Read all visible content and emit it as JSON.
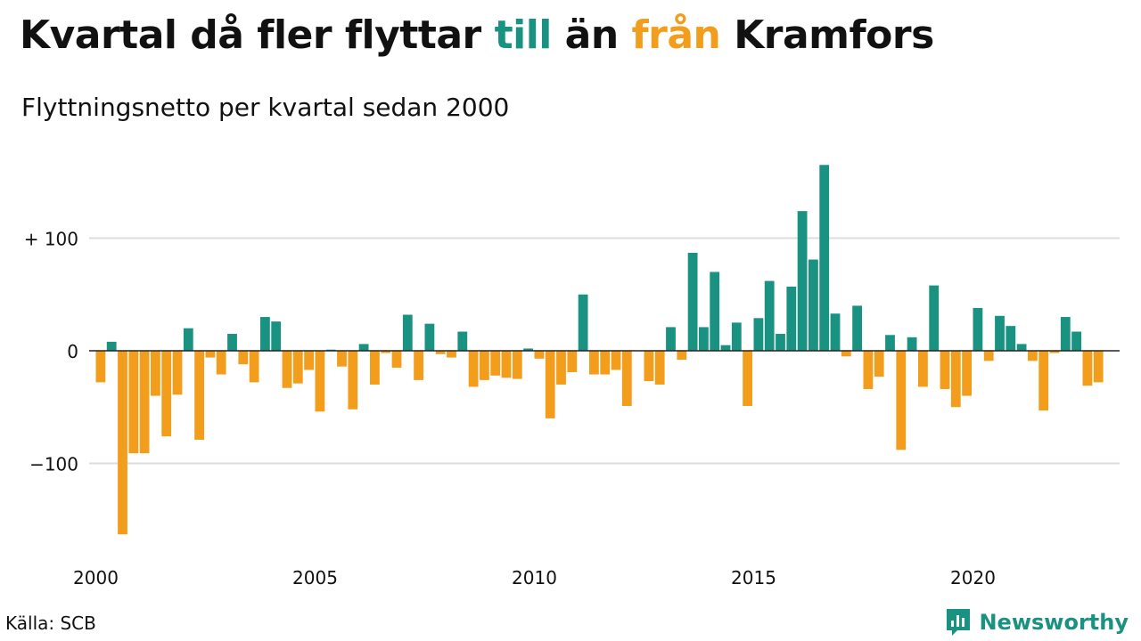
{
  "header": {
    "title_parts": [
      "Kvartal då fler flyttar ",
      "till",
      " än ",
      "från",
      " Kramfors"
    ],
    "subtitle": "Flyttningsnetto per kvartal sedan 2000"
  },
  "footer": {
    "source": "Källa: SCB",
    "brand": "Newsworthy"
  },
  "colors": {
    "positive": "#1a9281",
    "negative": "#f29d1b",
    "grid": "#dddddd",
    "zero": "#222222"
  },
  "chart_data": {
    "type": "bar",
    "title": "Kvartal då fler flyttar till än från Kramfors",
    "subtitle": "Flyttningsnetto per kvartal sedan 2000",
    "x_tick_labels": [
      "2000",
      "2005",
      "2010",
      "2015",
      "2020"
    ],
    "y_ticks": [
      {
        "value": 100,
        "label": "+ 100"
      },
      {
        "value": 0,
        "label": "0"
      },
      {
        "value": -100,
        "label": "−100"
      }
    ],
    "ylim": [
      -175,
      175
    ],
    "grid": true,
    "start": "2000 Q1",
    "values": [
      -28,
      8,
      -163,
      -91,
      -91,
      -40,
      -76,
      -39,
      20,
      -79,
      -6,
      -21,
      15,
      -12,
      -28,
      30,
      26,
      -33,
      -29,
      -17,
      -54,
      1,
      -14,
      -52,
      6,
      -30,
      -2,
      -15,
      32,
      -26,
      24,
      -3,
      -6,
      17,
      -32,
      -26,
      -22,
      -24,
      -25,
      2,
      -7,
      -60,
      -30,
      -19,
      50,
      -21,
      -21,
      -17,
      -49,
      0,
      -27,
      -30,
      21,
      -8,
      87,
      21,
      70,
      5,
      25,
      -49,
      29,
      62,
      15,
      57,
      124,
      81,
      165,
      33,
      -5,
      40,
      -34,
      -23,
      14,
      -88,
      12,
      -32,
      58,
      -34,
      -50,
      -40,
      38,
      -9,
      31,
      22,
      6,
      -9,
      -53,
      -2,
      30,
      17,
      -31,
      -28
    ]
  }
}
